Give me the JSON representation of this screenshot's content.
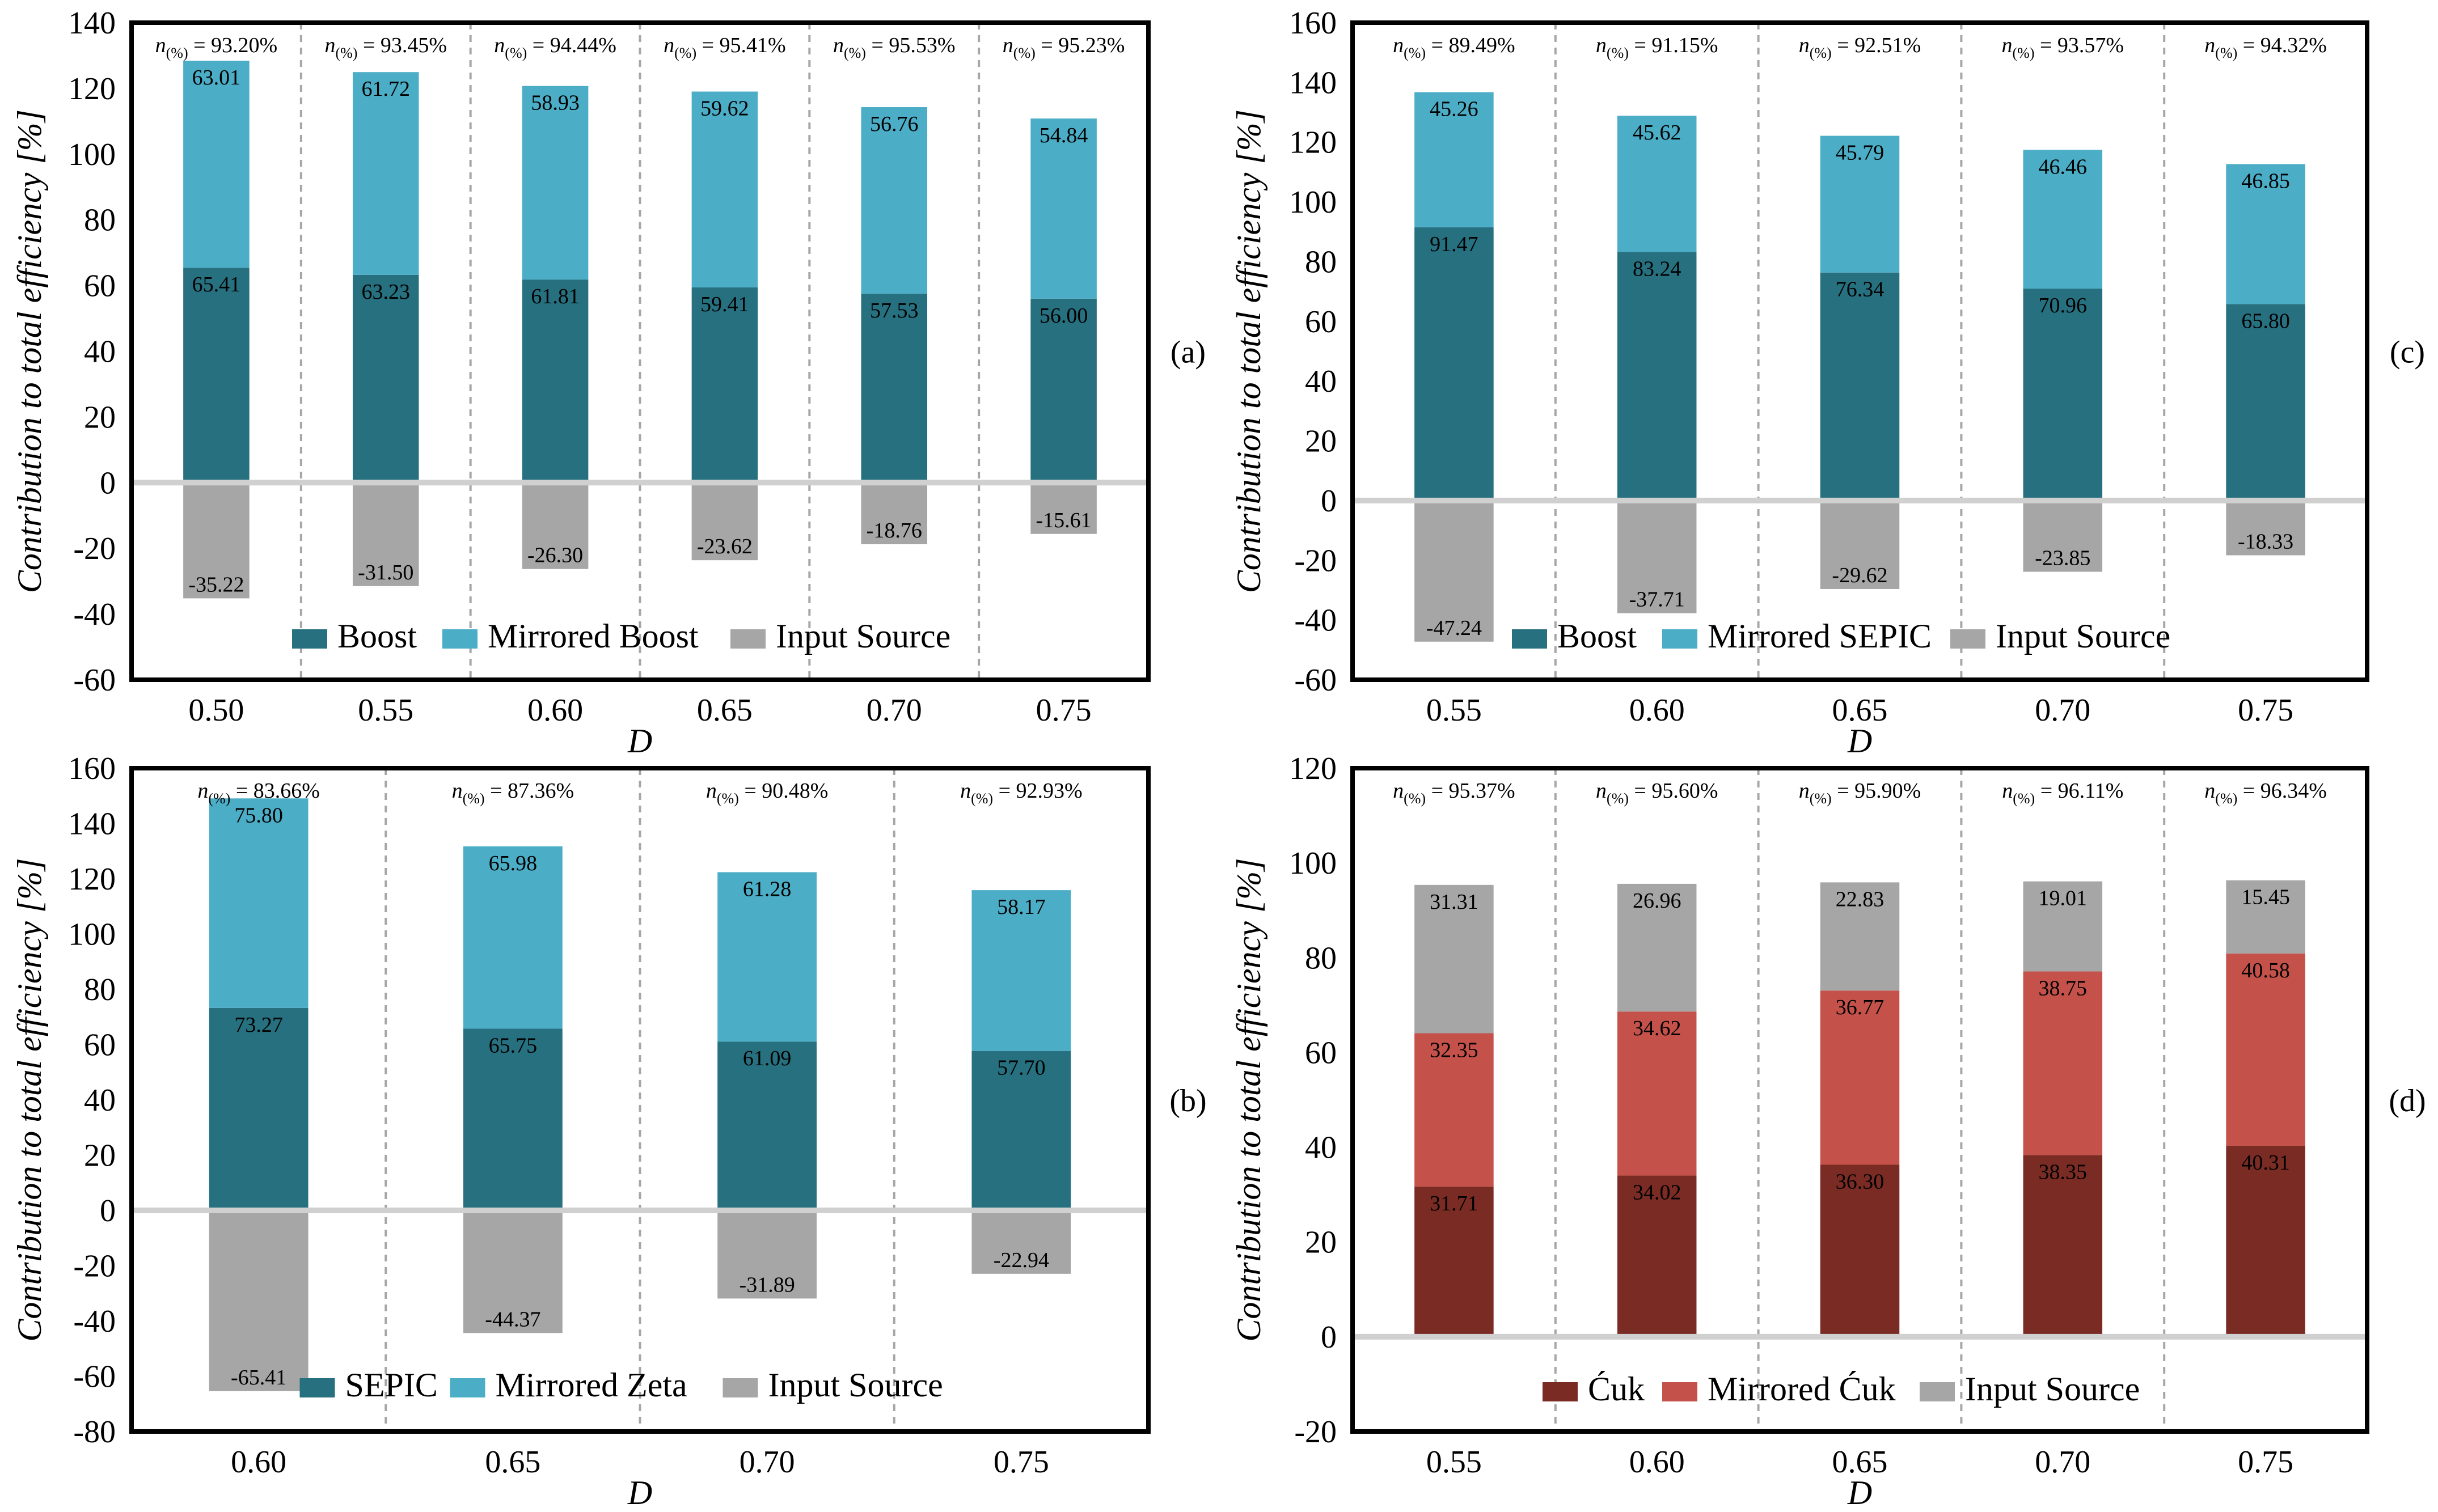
{
  "colors": {
    "dark_teal": "#26707f",
    "light_teal": "#4badc6",
    "gray": "#a6a6a6",
    "dark_red": "#7a2c24",
    "red": "#c5524a"
  },
  "chart_data": [
    {
      "id": "a",
      "panel_label": "(a)",
      "type": "bar",
      "stacked": true,
      "xlabel": "D",
      "ylabel": "Contribution to total efficiency [%]",
      "ylim": [
        -60,
        140
      ],
      "yticks": [
        "-60",
        "-40",
        "-20",
        "0",
        "20",
        "40",
        "60",
        "80",
        "100",
        "120",
        "140"
      ],
      "categories": [
        "0.50",
        "0.55",
        "0.60",
        "0.65",
        "0.70",
        "0.75"
      ],
      "efficiency_prefix": "n",
      "efficiency_subscript": "(%)",
      "efficiency": [
        "= 93.20%",
        "= 93.45%",
        "= 94.44%",
        "= 95.41%",
        "= 95.53%",
        "= 95.23%"
      ],
      "series": [
        {
          "name": "Boost",
          "color_key": "dark_teal",
          "values": [
            65.41,
            63.23,
            61.81,
            59.41,
            57.53,
            56.0
          ],
          "labels": [
            "65.41",
            "63.23",
            "61.81",
            "59.41",
            "57.53",
            "56.00"
          ]
        },
        {
          "name": "Mirrored Boost",
          "color_key": "light_teal",
          "values": [
            63.01,
            61.72,
            58.93,
            59.62,
            56.76,
            54.84
          ],
          "labels": [
            "63.01",
            "61.72",
            "58.93",
            "59.62",
            "56.76",
            "54.84"
          ]
        },
        {
          "name": "Input Source",
          "color_key": "gray",
          "values": [
            -35.22,
            -31.5,
            -26.3,
            -23.62,
            -18.76,
            -15.61
          ],
          "labels": [
            "-35.22",
            "-31.50",
            "-26.30",
            "-23.62",
            "-18.76",
            "-15.61"
          ]
        }
      ],
      "legend_position": "bottom"
    },
    {
      "id": "c",
      "panel_label": "(c)",
      "type": "bar",
      "stacked": true,
      "xlabel": "D",
      "ylabel": "Contribution to total efficiency [%]",
      "ylim": [
        -60,
        160
      ],
      "yticks": [
        "-60",
        "-40",
        "-20",
        "0",
        "20",
        "40",
        "60",
        "80",
        "100",
        "120",
        "140",
        "160"
      ],
      "categories": [
        "0.55",
        "0.60",
        "0.65",
        "0.70",
        "0.75"
      ],
      "efficiency_prefix": "n",
      "efficiency_subscript": "(%)",
      "efficiency": [
        "= 89.49%",
        "= 91.15%",
        "= 92.51%",
        "= 93.57%",
        "= 94.32%"
      ],
      "series": [
        {
          "name": "Boost",
          "color_key": "dark_teal",
          "values": [
            91.47,
            83.24,
            76.34,
            70.96,
            65.8
          ],
          "labels": [
            "91.47",
            "83.24",
            "76.34",
            "70.96",
            "65.80"
          ]
        },
        {
          "name": "Mirrored SEPIC",
          "color_key": "light_teal",
          "values": [
            45.26,
            45.62,
            45.79,
            46.46,
            46.85
          ],
          "labels": [
            "45.26",
            "45.62",
            "45.79",
            "46.46",
            "46.85"
          ]
        },
        {
          "name": "Input Source",
          "color_key": "gray",
          "values": [
            -47.24,
            -37.71,
            -29.62,
            -23.85,
            -18.33
          ],
          "labels": [
            "-47.24",
            "-37.71",
            "-29.62",
            "-23.85",
            "-18.33"
          ]
        }
      ],
      "legend_position": "bottom"
    },
    {
      "id": "b",
      "panel_label": "(b)",
      "type": "bar",
      "stacked": true,
      "xlabel": "D",
      "ylabel": "Contribution to total efficiency [%]",
      "ylim": [
        -80,
        160
      ],
      "yticks": [
        "-80",
        "-60",
        "-40",
        "-20",
        "0",
        "20",
        "40",
        "60",
        "80",
        "100",
        "120",
        "140",
        "160"
      ],
      "categories": [
        "0.60",
        "0.65",
        "0.70",
        "0.75"
      ],
      "efficiency_prefix": "n",
      "efficiency_subscript": "(%)",
      "efficiency": [
        "= 83.66%",
        "= 87.36%",
        "= 90.48%",
        "= 92.93%"
      ],
      "series": [
        {
          "name": "SEPIC",
          "color_key": "dark_teal",
          "values": [
            73.27,
            65.75,
            61.09,
            57.7
          ],
          "labels": [
            "73.27",
            "65.75",
            "61.09",
            "57.70"
          ]
        },
        {
          "name": "Mirrored Zeta",
          "color_key": "light_teal",
          "values": [
            75.8,
            65.98,
            61.28,
            58.17
          ],
          "labels": [
            "75.80",
            "65.98",
            "61.28",
            "58.17"
          ]
        },
        {
          "name": "Input Source",
          "color_key": "gray",
          "values": [
            -65.41,
            -44.37,
            -31.89,
            -22.94
          ],
          "labels": [
            "-65.41",
            "-44.37",
            "-31.89",
            "-22.94"
          ]
        }
      ],
      "legend_position": "bottom"
    },
    {
      "id": "d",
      "panel_label": "(d)",
      "type": "bar",
      "stacked": true,
      "xlabel": "D",
      "ylabel": "Contribution to total efficiency [%]",
      "ylim": [
        -20,
        120
      ],
      "yticks": [
        "-20",
        "0",
        "20",
        "40",
        "60",
        "80",
        "100",
        "120"
      ],
      "categories": [
        "0.55",
        "0.60",
        "0.65",
        "0.70",
        "0.75"
      ],
      "efficiency_prefix": "n",
      "efficiency_subscript": "(%)",
      "efficiency": [
        "= 95.37%",
        "= 95.60%",
        "= 95.90%",
        "= 96.11%",
        "= 96.34%"
      ],
      "series": [
        {
          "name": "Ćuk",
          "color_key": "dark_red",
          "values": [
            31.71,
            34.02,
            36.3,
            38.35,
            40.31
          ],
          "labels": [
            "31.71",
            "34.02",
            "36.30",
            "38.35",
            "40.31"
          ]
        },
        {
          "name": "Mirrored Ćuk",
          "color_key": "red",
          "values": [
            32.35,
            34.62,
            36.77,
            38.75,
            40.58
          ],
          "labels": [
            "32.35",
            "34.62",
            "36.77",
            "38.75",
            "40.58"
          ]
        },
        {
          "name": "Input Source",
          "color_key": "gray",
          "values": [
            31.31,
            26.96,
            22.83,
            19.01,
            15.45
          ],
          "labels": [
            "31.31",
            "26.96",
            "22.83",
            "19.01",
            "15.45"
          ]
        }
      ],
      "legend_position": "bottom"
    }
  ]
}
